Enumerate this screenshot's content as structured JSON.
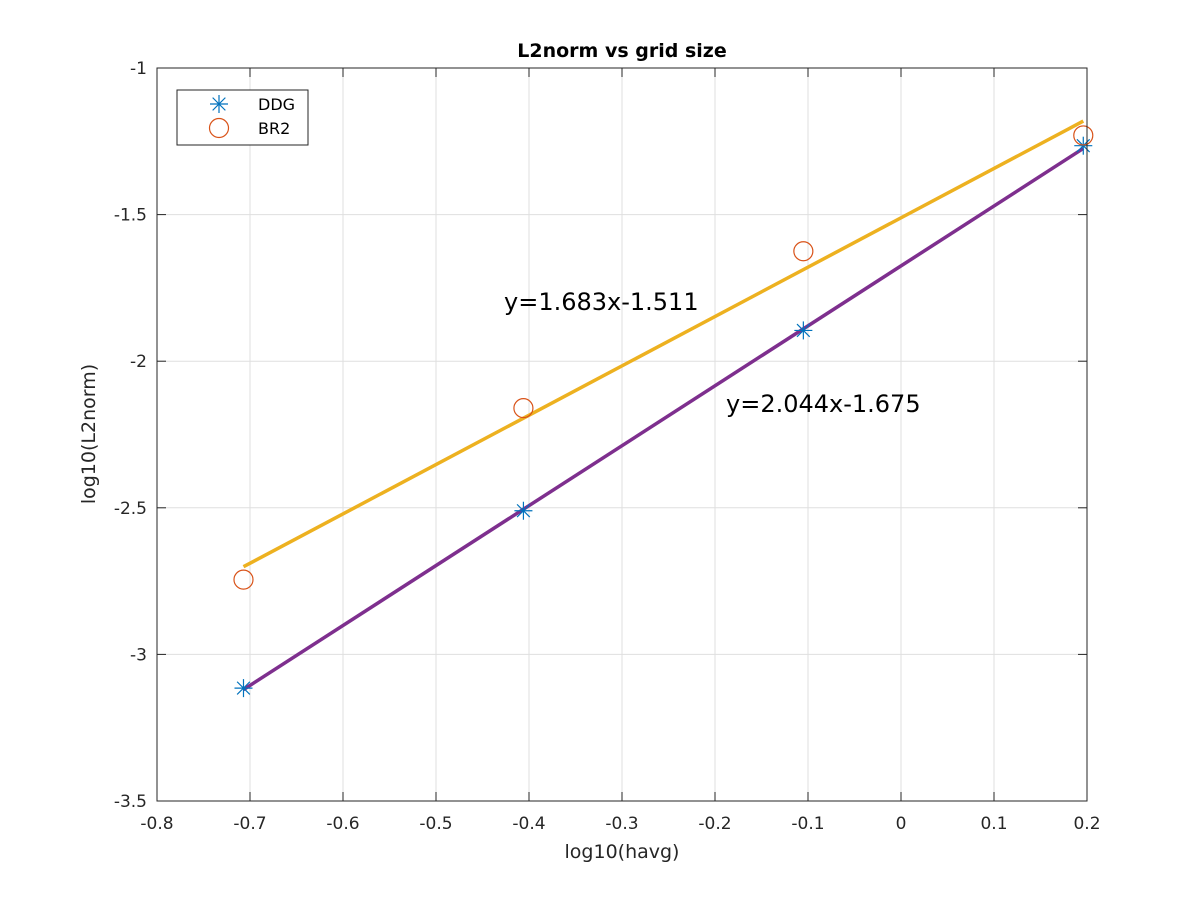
{
  "chart_data": {
    "type": "scatter",
    "title": "L2norm vs grid size",
    "xlabel": "log10(havg)",
    "ylabel": "log10(L2norm)",
    "xlim": [
      -0.8,
      0.2
    ],
    "ylim": [
      -3.5,
      -1
    ],
    "xticks": [
      -0.8,
      -0.7,
      -0.6,
      -0.5,
      -0.4,
      -0.3,
      -0.2,
      -0.1,
      0,
      0.1,
      0.2
    ],
    "xtick_labels": [
      "-0.8",
      "-0.7",
      "-0.6",
      "-0.5",
      "-0.4",
      "-0.3",
      "-0.2",
      "-0.1",
      "0",
      "0.1",
      "0.2"
    ],
    "yticks": [
      -1,
      -1.5,
      -2,
      -2.5,
      -3,
      -3.5
    ],
    "ytick_labels": [
      "-1",
      "-1.5",
      "-2",
      "-2.5",
      "-3",
      "-3.5"
    ],
    "grid": true,
    "legend_position": "top-left",
    "series": [
      {
        "name": "DDG",
        "marker": "asterisk",
        "color": "#0072bd",
        "x": [
          -0.707,
          -0.406,
          -0.105,
          0.196
        ],
        "y": [
          -3.115,
          -2.51,
          -1.895,
          -1.265
        ]
      },
      {
        "name": "BR2",
        "marker": "circle",
        "color": "#d95319",
        "x": [
          -0.707,
          -0.406,
          -0.105,
          0.196
        ],
        "y": [
          -2.745,
          -2.16,
          -1.625,
          -1.23
        ]
      }
    ],
    "fit_lines": [
      {
        "label": "y=1.683x-1.511",
        "slope": 1.683,
        "intercept": -1.511,
        "x_range": [
          -0.707,
          0.196
        ],
        "color": "#edb120"
      },
      {
        "label": "y=2.044x-1.675",
        "slope": 2.044,
        "intercept": -1.675,
        "x_range": [
          -0.707,
          0.196
        ],
        "color": "#7e2f8e"
      }
    ]
  }
}
